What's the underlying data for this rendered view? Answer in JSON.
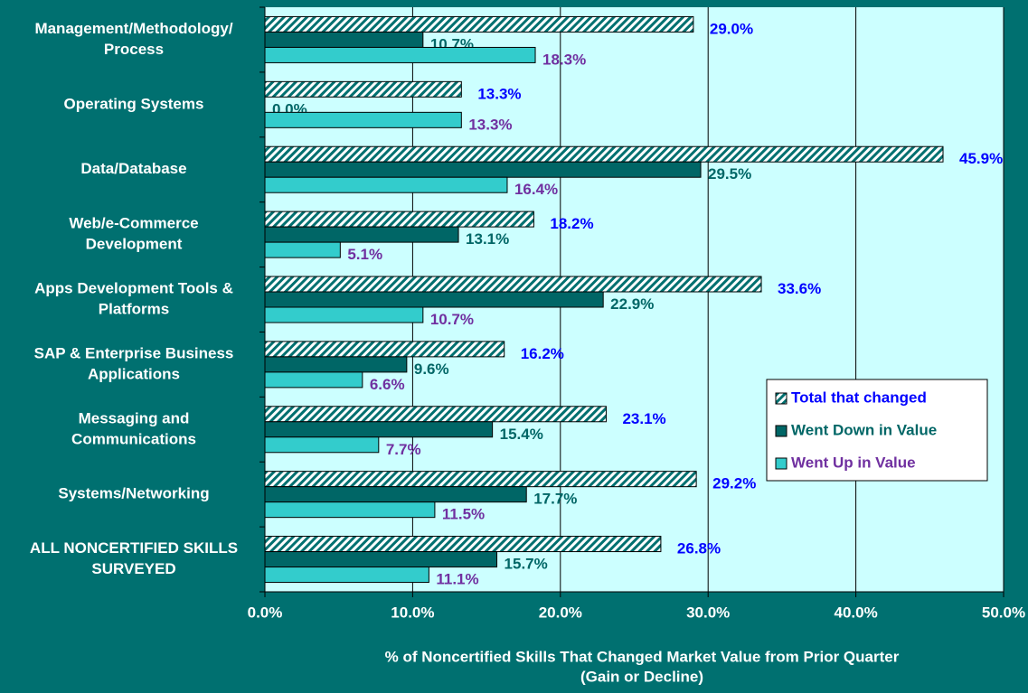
{
  "chart_data": {
    "type": "hbar_grouped",
    "categories": [
      [
        "Management/Methodology/",
        "Process"
      ],
      [
        "Operating Systems"
      ],
      [
        "Data/Database"
      ],
      [
        "Web/e-Commerce",
        "Development"
      ],
      [
        "Apps Development Tools &",
        "Platforms"
      ],
      [
        "SAP & Enterprise Business",
        "Applications"
      ],
      [
        "Messaging and",
        "Communications"
      ],
      [
        "Systems/Networking"
      ],
      [
        "ALL NONCERTIFIED SKILLS",
        "SURVEYED"
      ]
    ],
    "series": [
      {
        "name": "Total that changed",
        "color": "#007070",
        "pattern": "hatch",
        "label_color": "#0000ff",
        "values": [
          29.0,
          13.3,
          45.9,
          18.2,
          33.6,
          16.2,
          23.1,
          29.2,
          26.8
        ],
        "value_labels": [
          "29.0%",
          "13.3%",
          "45.9%",
          "18.2%",
          "33.6%",
          "16.2%",
          "23.1%",
          "29.2%",
          "26.8%"
        ]
      },
      {
        "name": "Went Down in Value",
        "color": "#006666",
        "label_color": "#006666",
        "values": [
          10.7,
          0.0,
          29.5,
          13.1,
          22.9,
          9.6,
          15.4,
          17.7,
          15.7
        ],
        "value_labels": [
          "10.7%",
          "0.0%",
          "29.5%",
          "13.1%",
          "22.9%",
          "9.6%",
          "15.4%",
          "17.7%",
          "15.7%"
        ]
      },
      {
        "name": "Went Up in Value",
        "color": "#33cccc",
        "label_color": "#7030a0",
        "values": [
          18.3,
          13.3,
          16.4,
          5.1,
          10.7,
          6.6,
          7.7,
          11.5,
          11.1
        ],
        "value_labels": [
          "18.3%",
          "13.3%",
          "16.4%",
          "5.1%",
          "10.7%",
          "6.6%",
          "7.7%",
          "11.5%",
          "11.1%"
        ]
      }
    ],
    "xlabel": [
      "% of Noncertified Skills That Changed Market Value from Prior Quarter",
      "(Gain or Decline)"
    ],
    "xlim": [
      0,
      50
    ],
    "xticks": [
      {
        "value": 0,
        "label": "0.0%"
      },
      {
        "value": 10,
        "label": "10.0%"
      },
      {
        "value": 20,
        "label": "20.0%"
      },
      {
        "value": 30,
        "label": "30.0%"
      },
      {
        "value": 40,
        "label": "40.0%"
      },
      {
        "value": 50,
        "label": "50.0%"
      }
    ],
    "grid": true,
    "legend": "lower right"
  }
}
